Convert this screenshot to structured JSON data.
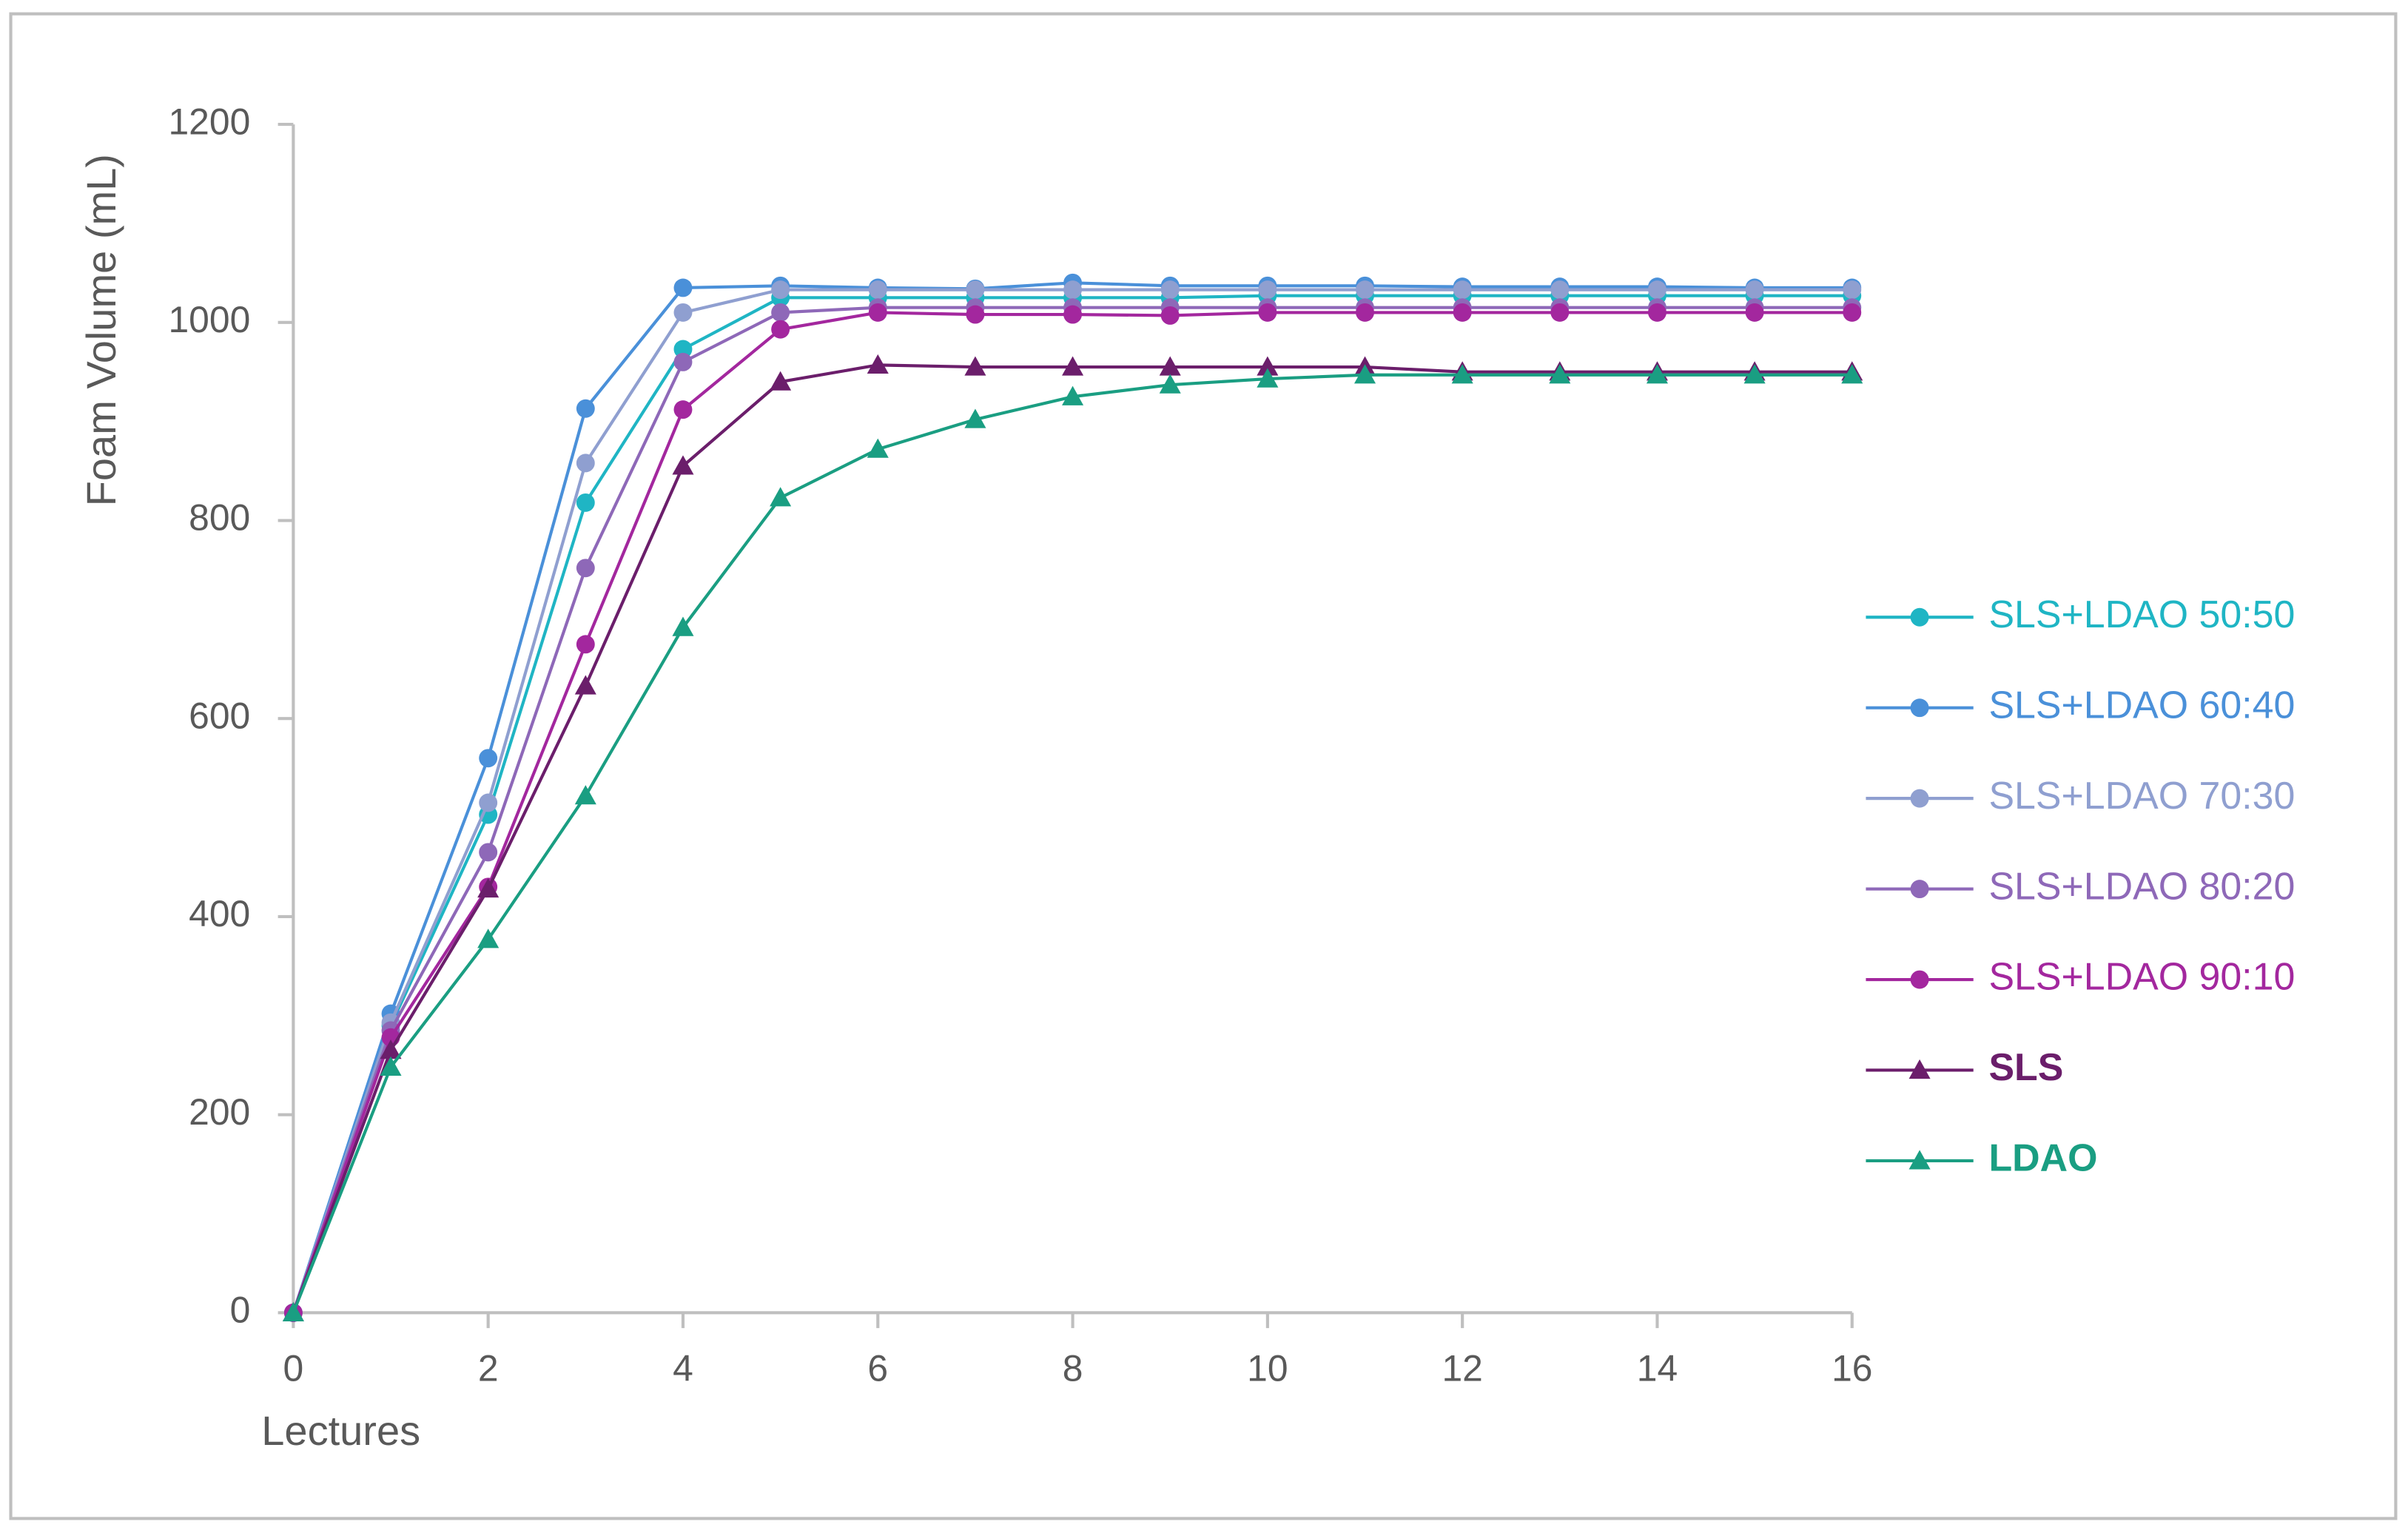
{
  "chart_data": {
    "type": "line",
    "x_label": "Lectures",
    "y_label": "Foam Volume (mL)",
    "x": [
      0,
      1,
      2,
      3,
      4,
      5,
      6,
      7,
      8,
      9,
      10,
      11,
      12,
      13,
      14,
      15,
      16
    ],
    "xlim": [
      0,
      16
    ],
    "xticks": [
      0,
      2,
      4,
      6,
      8,
      10,
      12,
      14,
      16
    ],
    "ylim": [
      0,
      1200
    ],
    "yticks": [
      0,
      200,
      400,
      600,
      800,
      1000,
      1200
    ],
    "grid": false,
    "legend": "right",
    "series": [
      {
        "name": "SLS+LDAO 50:50",
        "color": "#1fb5c4",
        "marker": "circle",
        "bold": false,
        "values": [
          0,
          290,
          503,
          818,
          973,
          1025,
          1025,
          1025,
          1025,
          1025,
          1027,
          1027,
          1027,
          1027,
          1027,
          1027,
          1027
        ]
      },
      {
        "name": "SLS+LDAO 60:40",
        "color": "#4a90d9",
        "marker": "circle",
        "bold": false,
        "values": [
          0,
          302,
          560,
          913,
          1035,
          1037,
          1035,
          1034,
          1040,
          1037,
          1037,
          1037,
          1036,
          1036,
          1036,
          1035,
          1035
        ]
      },
      {
        "name": "SLS+LDAO 70:30",
        "color": "#8f9fd0",
        "marker": "circle",
        "bold": false,
        "values": [
          0,
          293,
          515,
          858,
          1010,
          1033,
          1033,
          1033,
          1033,
          1033,
          1033,
          1033,
          1033,
          1033,
          1033,
          1033,
          1033
        ]
      },
      {
        "name": "SLS+LDAO 80:20",
        "color": "#8e68b8",
        "marker": "circle",
        "bold": false,
        "values": [
          0,
          285,
          465,
          752,
          960,
          1010,
          1015,
          1015,
          1015,
          1015,
          1015,
          1015,
          1015,
          1015,
          1015,
          1015,
          1015
        ]
      },
      {
        "name": "SLS+LDAO 90:10",
        "color": "#a3279e",
        "marker": "circle",
        "bold": false,
        "values": [
          0,
          278,
          430,
          675,
          912,
          993,
          1010,
          1008,
          1008,
          1007,
          1010,
          1010,
          1010,
          1010,
          1010,
          1010,
          1010
        ]
      },
      {
        "name": "SLS",
        "color": "#6b1e6b",
        "marker": "triangle",
        "bold": true,
        "values": [
          0,
          265,
          428,
          633,
          855,
          940,
          957,
          955,
          955,
          955,
          955,
          955,
          950,
          950,
          950,
          950,
          950
        ]
      },
      {
        "name": "LDAO",
        "color": "#1a9e82",
        "marker": "triangle",
        "bold": true,
        "values": [
          0,
          248,
          377,
          522,
          692,
          823,
          872,
          902,
          925,
          937,
          943,
          947,
          947,
          947,
          947,
          947,
          947
        ]
      }
    ]
  }
}
